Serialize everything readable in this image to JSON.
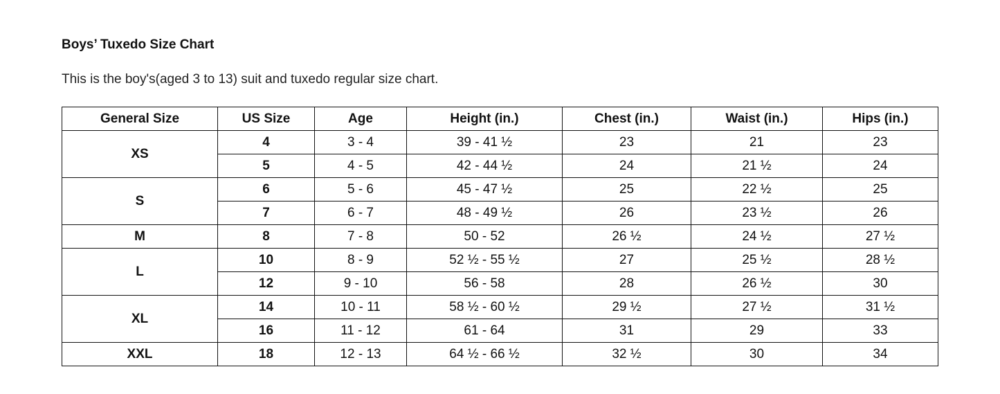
{
  "title": "Boys’ Tuxedo Size Chart",
  "description": "This is the boy's(aged 3 to 13) suit and tuxedo regular size chart.",
  "table": {
    "headers": [
      "General Size",
      "US Size",
      "Age",
      "Height (in.)",
      "Chest (in.)",
      "Waist (in.)",
      "Hips (in.)"
    ],
    "groups": [
      {
        "general": "XS",
        "rows": [
          [
            "4",
            "3 - 4",
            "39 - 41 ½",
            "23",
            "21",
            "23"
          ],
          [
            "5",
            "4 - 5",
            "42 - 44 ½",
            "24",
            "21 ½",
            "24"
          ]
        ]
      },
      {
        "general": "S",
        "rows": [
          [
            "6",
            "5 - 6",
            "45 - 47 ½",
            "25",
            "22 ½",
            "25"
          ],
          [
            "7",
            "6 - 7",
            "48 - 49 ½",
            "26",
            "23 ½",
            "26"
          ]
        ]
      },
      {
        "general": "M",
        "rows": [
          [
            "8",
            "7 - 8",
            "50 - 52",
            "26 ½",
            "24 ½",
            "27 ½"
          ]
        ]
      },
      {
        "general": "L",
        "rows": [
          [
            "10",
            "8 - 9",
            "52 ½ - 55 ½",
            "27",
            "25 ½",
            "28 ½"
          ],
          [
            "12",
            "9 - 10",
            "56 - 58",
            "28",
            "26 ½",
            "30"
          ]
        ]
      },
      {
        "general": "XL",
        "rows": [
          [
            "14",
            "10 - 11",
            "58 ½ - 60 ½",
            "29 ½",
            "27 ½",
            "31 ½"
          ],
          [
            "16",
            "11 - 12",
            "61 - 64",
            "31",
            "29",
            "33"
          ]
        ]
      },
      {
        "general": "XXL",
        "rows": [
          [
            "18",
            "12 - 13",
            "64 ½ - 66 ½",
            "32 ½",
            "30",
            "34"
          ]
        ]
      }
    ]
  }
}
